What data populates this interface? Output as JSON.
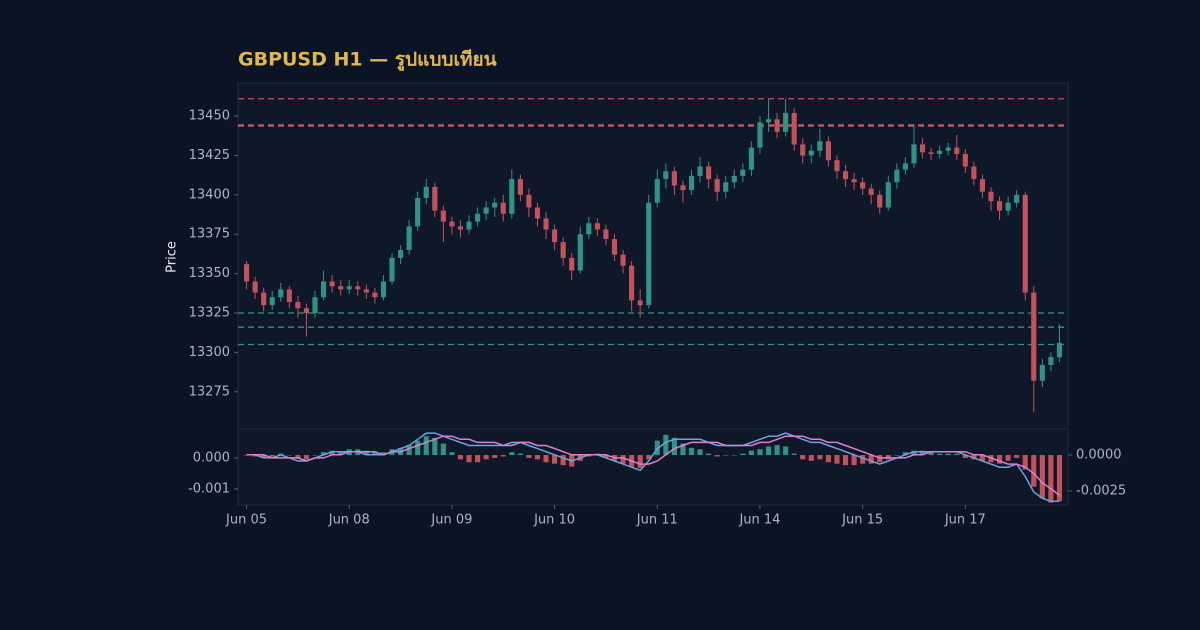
{
  "chart_data": {
    "type": "candlestick",
    "title": "GBPUSD H1 — รูปแบบเทียน",
    "ylabel": "Price",
    "xlim": [
      -1,
      96
    ],
    "xticks": [
      {
        "value": 0,
        "label": "Jun 05"
      },
      {
        "value": 12,
        "label": "Jun 08"
      },
      {
        "value": 24,
        "label": "Jun 09"
      },
      {
        "value": 36,
        "label": "Jun 10"
      },
      {
        "value": 48,
        "label": "Jun 11"
      },
      {
        "value": 60,
        "label": "Jun 14"
      },
      {
        "value": 72,
        "label": "Jun 15"
      },
      {
        "value": 84,
        "label": "Jun 17"
      }
    ],
    "ylim": [
      13252,
      13471
    ],
    "yticks": [
      13275,
      13300,
      13325,
      13350,
      13375,
      13400,
      13425,
      13450
    ],
    "up_color": "#2f9488",
    "down_color": "#c4525c",
    "levels": [
      {
        "value": 13461,
        "color": "#c4525c"
      },
      {
        "value": 13444,
        "color": "#c4525c"
      },
      {
        "value": 13325,
        "color": "#2f9488"
      },
      {
        "value": 13316,
        "color": "#2f9488"
      },
      {
        "value": 13305,
        "color": "#2f9488"
      }
    ],
    "ohlc": [
      [
        13356,
        13358,
        13340,
        13345
      ],
      [
        13345,
        13348,
        13334,
        13338
      ],
      [
        13338,
        13341,
        13326,
        13330
      ],
      [
        13330,
        13339,
        13327,
        13335
      ],
      [
        13335,
        13344,
        13332,
        13340
      ],
      [
        13340,
        13342,
        13328,
        13332
      ],
      [
        13332,
        13336,
        13322,
        13328
      ],
      [
        13328,
        13331,
        13310,
        13325
      ],
      [
        13325,
        13339,
        13322,
        13335
      ],
      [
        13335,
        13352,
        13333,
        13345
      ],
      [
        13345,
        13349,
        13338,
        13342
      ],
      [
        13342,
        13346,
        13336,
        13340
      ],
      [
        13340,
        13346,
        13337,
        13342
      ],
      [
        13342,
        13345,
        13336,
        13340
      ],
      [
        13340,
        13343,
        13334,
        13338
      ],
      [
        13338,
        13341,
        13331,
        13335
      ],
      [
        13335,
        13349,
        13333,
        13345
      ],
      [
        13345,
        13363,
        13343,
        13360
      ],
      [
        13360,
        13368,
        13356,
        13365
      ],
      [
        13365,
        13384,
        13362,
        13380
      ],
      [
        13380,
        13402,
        13377,
        13398
      ],
      [
        13398,
        13410,
        13394,
        13405
      ],
      [
        13405,
        13408,
        13386,
        13390
      ],
      [
        13390,
        13393,
        13370,
        13383
      ],
      [
        13383,
        13386,
        13375,
        13380
      ],
      [
        13380,
        13384,
        13373,
        13378
      ],
      [
        13378,
        13387,
        13375,
        13383
      ],
      [
        13383,
        13392,
        13380,
        13388
      ],
      [
        13388,
        13396,
        13384,
        13392
      ],
      [
        13392,
        13398,
        13386,
        13395
      ],
      [
        13395,
        13400,
        13383,
        13388
      ],
      [
        13388,
        13416,
        13385,
        13410
      ],
      [
        13410,
        13413,
        13396,
        13400
      ],
      [
        13400,
        13404,
        13386,
        13392
      ],
      [
        13392,
        13395,
        13380,
        13385
      ],
      [
        13385,
        13389,
        13372,
        13378
      ],
      [
        13378,
        13381,
        13365,
        13370
      ],
      [
        13370,
        13373,
        13355,
        13360
      ],
      [
        13360,
        13363,
        13346,
        13352
      ],
      [
        13352,
        13380,
        13350,
        13375
      ],
      [
        13375,
        13386,
        13372,
        13382
      ],
      [
        13382,
        13385,
        13374,
        13378
      ],
      [
        13378,
        13381,
        13368,
        13372
      ],
      [
        13372,
        13375,
        13358,
        13362
      ],
      [
        13362,
        13365,
        13350,
        13355
      ],
      [
        13355,
        13358,
        13326,
        13333
      ],
      [
        13333,
        13340,
        13322,
        13330
      ],
      [
        13330,
        13400,
        13328,
        13395
      ],
      [
        13395,
        13416,
        13392,
        13410
      ],
      [
        13410,
        13420,
        13404,
        13415
      ],
      [
        13415,
        13418,
        13400,
        13406
      ],
      [
        13406,
        13409,
        13395,
        13403
      ],
      [
        13403,
        13416,
        13400,
        13412
      ],
      [
        13412,
        13424,
        13408,
        13418
      ],
      [
        13418,
        13421,
        13404,
        13410
      ],
      [
        13410,
        13413,
        13396,
        13402
      ],
      [
        13402,
        13412,
        13398,
        13408
      ],
      [
        13408,
        13416,
        13404,
        13412
      ],
      [
        13412,
        13420,
        13408,
        13416
      ],
      [
        13416,
        13434,
        13412,
        13430
      ],
      [
        13430,
        13450,
        13426,
        13446
      ],
      [
        13446,
        13461,
        13440,
        13448
      ],
      [
        13448,
        13452,
        13436,
        13440
      ],
      [
        13440,
        13461,
        13437,
        13452
      ],
      [
        13452,
        13455,
        13428,
        13432
      ],
      [
        13432,
        13436,
        13420,
        13425
      ],
      [
        13425,
        13432,
        13420,
        13428
      ],
      [
        13428,
        13442,
        13424,
        13434
      ],
      [
        13434,
        13437,
        13418,
        13422
      ],
      [
        13422,
        13425,
        13410,
        13415
      ],
      [
        13415,
        13419,
        13405,
        13410
      ],
      [
        13410,
        13414,
        13403,
        13408
      ],
      [
        13408,
        13411,
        13400,
        13404
      ],
      [
        13404,
        13407,
        13394,
        13400
      ],
      [
        13400,
        13403,
        13388,
        13392
      ],
      [
        13392,
        13412,
        13390,
        13408
      ],
      [
        13408,
        13420,
        13404,
        13416
      ],
      [
        13416,
        13424,
        13413,
        13420
      ],
      [
        13420,
        13445,
        13417,
        13432
      ],
      [
        13432,
        13436,
        13423,
        13427
      ],
      [
        13427,
        13430,
        13422,
        13426
      ],
      [
        13426,
        13431,
        13423,
        13428
      ],
      [
        13428,
        13433,
        13425,
        13430
      ],
      [
        13430,
        13438,
        13422,
        13426
      ],
      [
        13426,
        13429,
        13414,
        13418
      ],
      [
        13418,
        13421,
        13406,
        13410
      ],
      [
        13410,
        13413,
        13398,
        13402
      ],
      [
        13402,
        13405,
        13390,
        13396
      ],
      [
        13396,
        13399,
        13384,
        13390
      ],
      [
        13390,
        13399,
        13387,
        13395
      ],
      [
        13395,
        13403,
        13392,
        13400
      ],
      [
        13400,
        13402,
        13333,
        13338
      ],
      [
        13338,
        13342,
        13262,
        13282
      ],
      [
        13282,
        13296,
        13278,
        13292
      ],
      [
        13292,
        13300,
        13288,
        13297
      ],
      [
        13297,
        13318,
        13294,
        13306
      ]
    ],
    "macd": {
      "ylim": [
        -0.00152,
        0.0009
      ],
      "yticks": [
        {
          "value": 0,
          "label": "0.000"
        },
        -0.001
      ],
      "y2lim": [
        -0.00347,
        0.00174
      ],
      "y2ticks": [
        {
          "value": 0,
          "label": "0.0000"
        },
        -0.0025
      ],
      "macd_color": "#6aa5e0",
      "signal_color": "#de7fd0",
      "macd": [
        0.0001,
        0.0001,
        0,
        0,
        0.0001,
        0,
        -0.0001,
        -0.0001,
        0,
        0.0001,
        0.0002,
        0.0002,
        0.0002,
        0.0002,
        0.0001,
        0.0001,
        0.0001,
        0.0002,
        0.0003,
        0.0004,
        0.0006,
        0.0008,
        0.0008,
        0.0007,
        0.0006,
        0.0005,
        0.0004,
        0.0004,
        0.0004,
        0.0004,
        0.0004,
        0.0005,
        0.0005,
        0.0004,
        0.0003,
        0.0002,
        0.0001,
        0,
        -0.0001,
        0,
        0.0001,
        0.0001,
        0,
        -0.0001,
        -0.0002,
        -0.0003,
        -0.0004,
        -0.0001,
        0.0003,
        0.0005,
        0.0006,
        0.0006,
        0.0006,
        0.0006,
        0.0005,
        0.0004,
        0.0004,
        0.0004,
        0.0004,
        0.0005,
        0.0006,
        0.0007,
        0.0007,
        0.0008,
        0.0007,
        0.0006,
        0.0005,
        0.0005,
        0.0004,
        0.0003,
        0.0002,
        0.0001,
        0,
        -0.0001,
        -0.0002,
        -0.0001,
        0,
        0.0001,
        0.0002,
        0.0002,
        0.0002,
        0.0002,
        0.0002,
        0.0002,
        0.0001,
        0,
        -0.0001,
        -0.0002,
        -0.0003,
        -0.0003,
        -0.0002,
        -0.0006,
        -0.0011,
        -0.0013,
        -0.0014,
        -0.0014
      ],
      "signal": [
        0.0001,
        0.0001,
        0.0001,
        0,
        0,
        0,
        0,
        -0.0001,
        0,
        0,
        0.0001,
        0.0001,
        0.0002,
        0.0002,
        0.0002,
        0.0002,
        0.0001,
        0.0002,
        0.0002,
        0.0003,
        0.0004,
        0.0005,
        0.0006,
        0.0007,
        0.0007,
        0.0006,
        0.0006,
        0.0005,
        0.0005,
        0.0005,
        0.0004,
        0.0004,
        0.0005,
        0.0005,
        0.0004,
        0.0004,
        0.0003,
        0.0002,
        0.0001,
        0.0001,
        0.0001,
        0.0001,
        0.0001,
        0,
        0,
        -0.0001,
        -0.0002,
        -0.0002,
        -0.0001,
        0.0001,
        0.0003,
        0.0004,
        0.0005,
        0.0005,
        0.0005,
        0.0005,
        0.0004,
        0.0004,
        0.0004,
        0.0004,
        0.0005,
        0.0005,
        0.0006,
        0.0007,
        0.0007,
        0.0007,
        0.0006,
        0.0006,
        0.0005,
        0.0005,
        0.0004,
        0.0003,
        0.0002,
        0.0001,
        0,
        0,
        0,
        0,
        0.0001,
        0.0001,
        0.0002,
        0.0002,
        0.0002,
        0.0002,
        0.0002,
        0.0001,
        0.0001,
        0,
        -0.0001,
        -0.0002,
        -0.0002,
        -0.0003,
        -0.0005,
        -0.0008,
        -0.001,
        -0.0012
      ],
      "histogram": [
        0,
        -0.0001,
        -0.0002,
        -0.0001,
        0.0001,
        0,
        -0.0002,
        -0.0003,
        0,
        0.0002,
        0.0003,
        0.0002,
        0.0004,
        0.0004,
        0.0003,
        0.0002,
        0.0002,
        0.0004,
        0.0005,
        0.0007,
        0.001,
        0.0013,
        0.0012,
        0.0008,
        0.0002,
        -0.0003,
        -0.0005,
        -0.0005,
        -0.0003,
        -0.0002,
        -0.0001,
        0.0002,
        0.0001,
        -0.0002,
        -0.0003,
        -0.0005,
        -0.0006,
        -0.0007,
        -0.0008,
        -0.0004,
        -0.0001,
        0.0001,
        -0.0002,
        -0.0004,
        -0.0006,
        -0.0008,
        -0.0009,
        -0.0003,
        0.001,
        0.0014,
        0.0012,
        0.0008,
        0.0005,
        0.0004,
        0.0001,
        -0.0001,
        0,
        0,
        0.0001,
        0.0003,
        0.0004,
        0.0006,
        0.0007,
        0.0006,
        0.0001,
        -0.0003,
        -0.0004,
        -0.0003,
        -0.0005,
        -0.0006,
        -0.0007,
        -0.0007,
        -0.0006,
        -0.0006,
        -0.0005,
        -0.0003,
        0,
        0.0002,
        0.0003,
        0.0003,
        0.0002,
        0.0001,
        0.0001,
        0.0001,
        -0.0002,
        -0.0003,
        -0.0004,
        -0.0005,
        -0.0006,
        -0.0004,
        -0.0002,
        -0.001,
        -0.0022,
        -0.003,
        -0.0033,
        -0.0032
      ]
    }
  }
}
